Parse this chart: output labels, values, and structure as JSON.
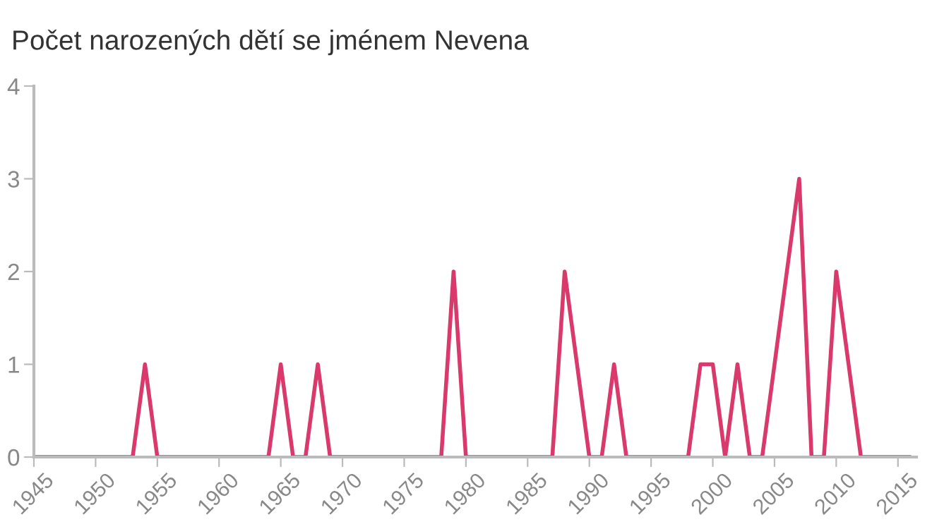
{
  "chart_data": {
    "type": "line",
    "title": "Počet narozených dětí se jménem Nevena",
    "x": [
      1945,
      1946,
      1947,
      1948,
      1949,
      1950,
      1951,
      1952,
      1953,
      1954,
      1955,
      1956,
      1957,
      1958,
      1959,
      1960,
      1961,
      1962,
      1963,
      1964,
      1965,
      1966,
      1967,
      1968,
      1969,
      1970,
      1971,
      1972,
      1973,
      1974,
      1975,
      1976,
      1977,
      1978,
      1979,
      1980,
      1981,
      1982,
      1983,
      1984,
      1985,
      1986,
      1987,
      1988,
      1989,
      1990,
      1991,
      1992,
      1993,
      1994,
      1995,
      1996,
      1997,
      1998,
      1999,
      2000,
      2001,
      2002,
      2003,
      2004,
      2005,
      2006,
      2007,
      2008,
      2009,
      2010,
      2011,
      2012,
      2013,
      2014,
      2015,
      2016
    ],
    "series": [
      {
        "color": "#d93a6b",
        "values": [
          0,
          0,
          0,
          0,
          0,
          0,
          0,
          0,
          0,
          1,
          0,
          0,
          0,
          0,
          0,
          0,
          0,
          0,
          0,
          0,
          1,
          0,
          0,
          1,
          0,
          0,
          0,
          0,
          0,
          0,
          0,
          0,
          0,
          0,
          2,
          0,
          0,
          0,
          0,
          0,
          0,
          0,
          0,
          2,
          1,
          0,
          0,
          1,
          0,
          0,
          0,
          0,
          0,
          0,
          1,
          1,
          0,
          1,
          0,
          0,
          1,
          2,
          3,
          0,
          0,
          2,
          1,
          0,
          0,
          0,
          0,
          0
        ]
      }
    ],
    "xlim": [
      1945,
      2016.5
    ],
    "xticks": [
      {
        "value": 1945,
        "label": "1945"
      },
      1950,
      1955,
      1960,
      1965,
      1970,
      1975,
      1980,
      1985,
      1990,
      1995,
      2000,
      2005,
      2010,
      2015
    ],
    "ylim": [
      0,
      4
    ],
    "yticks": [
      0,
      1,
      2,
      3,
      4
    ],
    "grid": false,
    "marker": "none",
    "line_style": "solid"
  }
}
